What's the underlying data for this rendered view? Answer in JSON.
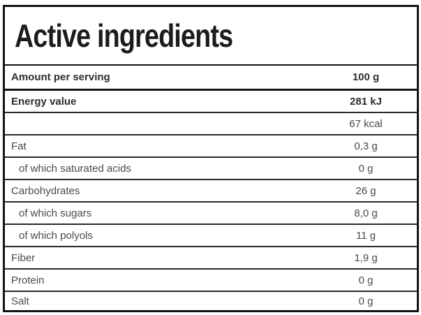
{
  "table": {
    "title": "Active ingredients",
    "serving_header": {
      "label": "Amount per serving",
      "value": "100 g"
    },
    "rows": [
      {
        "label": "Energy value",
        "value": "281 kJ"
      },
      {
        "label": "",
        "value": "67 kcal"
      },
      {
        "label": "Fat",
        "value": "0,3 g"
      },
      {
        "label": "of which saturated acids",
        "value": "0 g"
      },
      {
        "label": "Carbohydrates",
        "value": "26 g"
      },
      {
        "label": "of which sugars",
        "value": "8,0 g"
      },
      {
        "label": "of which polyols",
        "value": "11 g"
      },
      {
        "label": "Fiber",
        "value": "1,9 g"
      },
      {
        "label": "Protein",
        "value": "0 g"
      },
      {
        "label": "Salt",
        "value": "0 g"
      }
    ],
    "colors": {
      "outer_border": "#131313",
      "row_divider": "#2a2a2a",
      "title_text": "#1c1c1c",
      "bold_text": "#2e2e2e",
      "regular_text": "#4a4a4a",
      "background": "#ffffff"
    }
  }
}
